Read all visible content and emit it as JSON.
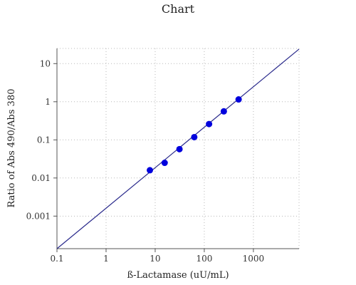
{
  "chart_data": {
    "type": "scatter",
    "title": "Chart",
    "xlabel": "ß-Lactamase (uU/mL)",
    "ylabel": "Ratio of Abs 490/Abs 380",
    "x_scale": "log",
    "y_scale": "log",
    "xlim": [
      0.1,
      8500
    ],
    "ylim": [
      0.00014,
      25
    ],
    "x_ticks": [
      0.1,
      1,
      10,
      100,
      1000
    ],
    "x_tick_labels": [
      "0.1",
      "1",
      "10",
      "100",
      "1000"
    ],
    "y_ticks": [
      0.001,
      0.01,
      0.1,
      1,
      10
    ],
    "y_tick_labels": [
      "0.001",
      "0.01",
      "0.1",
      "1",
      "10"
    ],
    "grid": true,
    "series": [
      {
        "points": [
          {
            "x": 7.8,
            "y": 0.016
          },
          {
            "x": 15.6,
            "y": 0.025
          },
          {
            "x": 31.25,
            "y": 0.057
          },
          {
            "x": 62.5,
            "y": 0.118
          },
          {
            "x": 125,
            "y": 0.26
          },
          {
            "x": 250,
            "y": 0.56
          },
          {
            "x": 500,
            "y": 1.15
          }
        ]
      }
    ],
    "fit_line": {
      "x": [
        0.1,
        8500
      ],
      "y": [
        0.00014,
        24
      ]
    },
    "colors": {
      "points": "#0000dd",
      "fit_line": "#2b2b8c"
    }
  }
}
